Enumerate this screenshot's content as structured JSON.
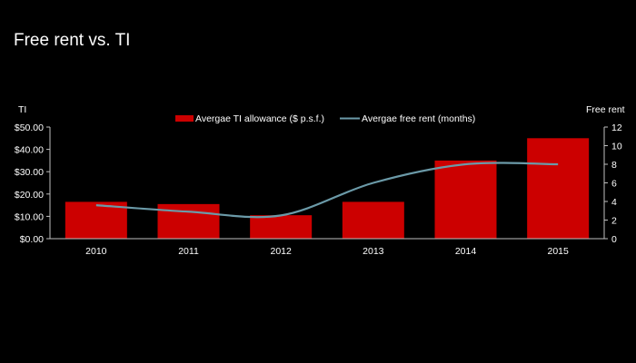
{
  "slide": {
    "title": "Free rent vs. TI"
  },
  "colors": {
    "background": "#000000",
    "bar": "#cc0000",
    "line": "#6b9aa8",
    "text": "#ffffff",
    "axis": "#bfbfbf"
  },
  "chart_data": {
    "type": "bar",
    "title": "",
    "categories": [
      "2010",
      "2011",
      "2012",
      "2013",
      "2014",
      "2015"
    ],
    "series": [
      {
        "name": "Avergae TI allowance ($ p.s.f.)",
        "type": "bar",
        "axis": "left",
        "values": [
          16.5,
          15.5,
          10.5,
          16.5,
          35.0,
          45.0
        ]
      },
      {
        "name": "Avergae free rent (months)",
        "type": "line",
        "axis": "right",
        "smooth": true,
        "values": [
          3.6,
          2.9,
          2.5,
          6.0,
          8.0,
          8.0
        ]
      }
    ],
    "ylabel_left": "TI",
    "ylabel_right": "Free rent",
    "ylim_left": [
      0,
      50
    ],
    "ylim_right": [
      0,
      12
    ],
    "yticks_left": [
      "$0.00",
      "$10.00",
      "$20.00",
      "$30.00",
      "$40.00",
      "$50.00"
    ],
    "yticks_right": [
      "0",
      "2",
      "4",
      "6",
      "8",
      "10",
      "12"
    ],
    "grid": false,
    "legend_position": "top"
  }
}
